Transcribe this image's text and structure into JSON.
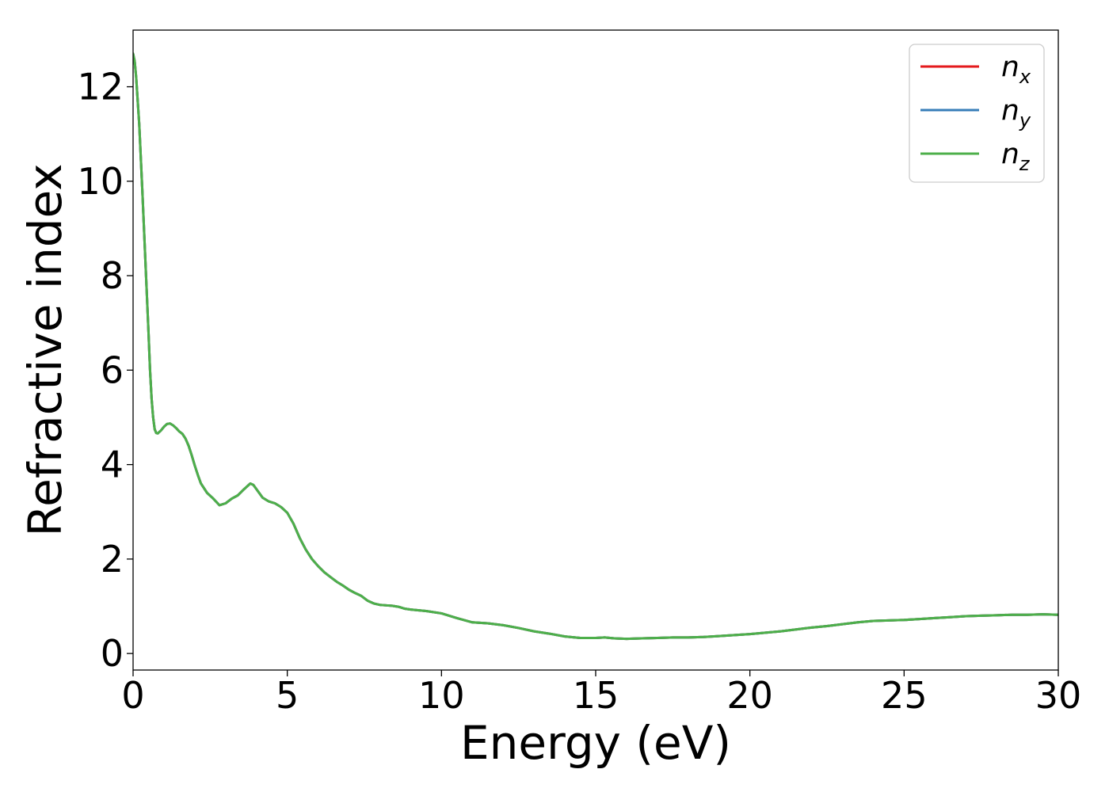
{
  "chart_data": {
    "type": "line",
    "title": "",
    "xlabel": "Energy (eV)",
    "ylabel": "Refractive index",
    "xlim": [
      0,
      30
    ],
    "ylim": [
      -0.35,
      13.2
    ],
    "xticks": [
      0,
      5,
      10,
      15,
      20,
      25,
      30
    ],
    "yticks": [
      0,
      2,
      4,
      6,
      8,
      10,
      12
    ],
    "grid": false,
    "legend_position": "top-right",
    "series": [
      {
        "name": "n",
        "subscript": "x",
        "color": "#e41a1c",
        "x": [
          0,
          0.05,
          0.1,
          0.2,
          0.3,
          0.4,
          0.5,
          0.55,
          0.6,
          0.65,
          0.7,
          0.75,
          0.8,
          0.9,
          1.0,
          1.1,
          1.2,
          1.3,
          1.4,
          1.5,
          1.6,
          1.7,
          1.8,
          1.9,
          2.0,
          2.1,
          2.2,
          2.4,
          2.6,
          2.8,
          3.0,
          3.2,
          3.4,
          3.6,
          3.8,
          3.9,
          4.0,
          4.2,
          4.4,
          4.6,
          4.8,
          5.0,
          5.2,
          5.4,
          5.6,
          5.8,
          6.0,
          6.2,
          6.4,
          6.6,
          6.8,
          7.0,
          7.2,
          7.4,
          7.6,
          7.8,
          8.0,
          8.2,
          8.4,
          8.6,
          8.8,
          9.0,
          9.5,
          10.0,
          10.5,
          11.0,
          11.5,
          12.0,
          12.5,
          13.0,
          13.5,
          14.0,
          14.5,
          15.0,
          15.3,
          15.6,
          16.0,
          16.5,
          17.0,
          17.5,
          18.0,
          18.5,
          19.0,
          19.5,
          20.0,
          20.5,
          21.0,
          21.5,
          22.0,
          22.5,
          23.0,
          23.5,
          24.0,
          24.5,
          25.0,
          25.5,
          26.0,
          26.5,
          27.0,
          27.5,
          28.0,
          28.5,
          29.0,
          29.5,
          30.0
        ],
        "values": [
          12.7,
          12.55,
          12.2,
          11.2,
          9.8,
          8.3,
          6.8,
          6.0,
          5.4,
          5.0,
          4.75,
          4.67,
          4.66,
          4.72,
          4.8,
          4.86,
          4.87,
          4.83,
          4.77,
          4.7,
          4.65,
          4.55,
          4.4,
          4.2,
          3.98,
          3.78,
          3.6,
          3.4,
          3.28,
          3.14,
          3.18,
          3.28,
          3.35,
          3.48,
          3.6,
          3.57,
          3.48,
          3.3,
          3.22,
          3.18,
          3.1,
          2.98,
          2.75,
          2.45,
          2.2,
          2.0,
          1.85,
          1.72,
          1.62,
          1.52,
          1.44,
          1.35,
          1.28,
          1.22,
          1.12,
          1.06,
          1.03,
          1.02,
          1.01,
          0.99,
          0.95,
          0.93,
          0.9,
          0.85,
          0.75,
          0.66,
          0.64,
          0.6,
          0.54,
          0.47,
          0.42,
          0.36,
          0.33,
          0.33,
          0.34,
          0.32,
          0.31,
          0.32,
          0.33,
          0.34,
          0.34,
          0.35,
          0.37,
          0.39,
          0.41,
          0.44,
          0.47,
          0.51,
          0.55,
          0.58,
          0.62,
          0.66,
          0.69,
          0.7,
          0.71,
          0.73,
          0.75,
          0.77,
          0.79,
          0.8,
          0.81,
          0.82,
          0.82,
          0.83,
          0.82
        ]
      },
      {
        "name": "n",
        "subscript": "y",
        "color": "#377eb8",
        "x": [
          0,
          0.05,
          0.1,
          0.2,
          0.3,
          0.4,
          0.5,
          0.55,
          0.6,
          0.65,
          0.7,
          0.75,
          0.8,
          0.9,
          1.0,
          1.1,
          1.2,
          1.3,
          1.4,
          1.5,
          1.6,
          1.7,
          1.8,
          1.9,
          2.0,
          2.1,
          2.2,
          2.4,
          2.6,
          2.8,
          3.0,
          3.2,
          3.4,
          3.6,
          3.8,
          3.9,
          4.0,
          4.2,
          4.4,
          4.6,
          4.8,
          5.0,
          5.2,
          5.4,
          5.6,
          5.8,
          6.0,
          6.2,
          6.4,
          6.6,
          6.8,
          7.0,
          7.2,
          7.4,
          7.6,
          7.8,
          8.0,
          8.2,
          8.4,
          8.6,
          8.8,
          9.0,
          9.5,
          10.0,
          10.5,
          11.0,
          11.5,
          12.0,
          12.5,
          13.0,
          13.5,
          14.0,
          14.5,
          15.0,
          15.3,
          15.6,
          16.0,
          16.5,
          17.0,
          17.5,
          18.0,
          18.5,
          19.0,
          19.5,
          20.0,
          20.5,
          21.0,
          21.5,
          22.0,
          22.5,
          23.0,
          23.5,
          24.0,
          24.5,
          25.0,
          25.5,
          26.0,
          26.5,
          27.0,
          27.5,
          28.0,
          28.5,
          29.0,
          29.5,
          30.0
        ],
        "values": [
          12.7,
          12.55,
          12.2,
          11.2,
          9.8,
          8.3,
          6.8,
          6.0,
          5.4,
          5.0,
          4.75,
          4.67,
          4.66,
          4.72,
          4.8,
          4.86,
          4.87,
          4.83,
          4.77,
          4.7,
          4.65,
          4.55,
          4.4,
          4.2,
          3.98,
          3.78,
          3.6,
          3.4,
          3.28,
          3.14,
          3.18,
          3.28,
          3.35,
          3.48,
          3.6,
          3.57,
          3.48,
          3.3,
          3.22,
          3.18,
          3.1,
          2.98,
          2.75,
          2.45,
          2.2,
          2.0,
          1.85,
          1.72,
          1.62,
          1.52,
          1.44,
          1.35,
          1.28,
          1.22,
          1.12,
          1.06,
          1.03,
          1.02,
          1.01,
          0.99,
          0.95,
          0.93,
          0.9,
          0.85,
          0.75,
          0.66,
          0.64,
          0.6,
          0.54,
          0.47,
          0.42,
          0.36,
          0.33,
          0.33,
          0.34,
          0.32,
          0.31,
          0.32,
          0.33,
          0.34,
          0.34,
          0.35,
          0.37,
          0.39,
          0.41,
          0.44,
          0.47,
          0.51,
          0.55,
          0.58,
          0.62,
          0.66,
          0.69,
          0.7,
          0.71,
          0.73,
          0.75,
          0.77,
          0.79,
          0.8,
          0.81,
          0.82,
          0.82,
          0.83,
          0.82
        ]
      },
      {
        "name": "n",
        "subscript": "z",
        "color": "#4daf4a",
        "x": [
          0,
          0.05,
          0.1,
          0.2,
          0.3,
          0.4,
          0.5,
          0.55,
          0.6,
          0.65,
          0.7,
          0.75,
          0.8,
          0.9,
          1.0,
          1.1,
          1.2,
          1.3,
          1.4,
          1.5,
          1.6,
          1.7,
          1.8,
          1.9,
          2.0,
          2.1,
          2.2,
          2.4,
          2.6,
          2.8,
          3.0,
          3.2,
          3.4,
          3.6,
          3.8,
          3.9,
          4.0,
          4.2,
          4.4,
          4.6,
          4.8,
          5.0,
          5.2,
          5.4,
          5.6,
          5.8,
          6.0,
          6.2,
          6.4,
          6.6,
          6.8,
          7.0,
          7.2,
          7.4,
          7.6,
          7.8,
          8.0,
          8.2,
          8.4,
          8.6,
          8.8,
          9.0,
          9.5,
          10.0,
          10.5,
          11.0,
          11.5,
          12.0,
          12.5,
          13.0,
          13.5,
          14.0,
          14.5,
          15.0,
          15.3,
          15.6,
          16.0,
          16.5,
          17.0,
          17.5,
          18.0,
          18.5,
          19.0,
          19.5,
          20.0,
          20.5,
          21.0,
          21.5,
          22.0,
          22.5,
          23.0,
          23.5,
          24.0,
          24.5,
          25.0,
          25.5,
          26.0,
          26.5,
          27.0,
          27.5,
          28.0,
          28.5,
          29.0,
          29.5,
          30.0
        ],
        "values": [
          12.7,
          12.55,
          12.2,
          11.2,
          9.8,
          8.3,
          6.8,
          6.0,
          5.4,
          5.0,
          4.75,
          4.67,
          4.66,
          4.72,
          4.8,
          4.86,
          4.87,
          4.83,
          4.77,
          4.7,
          4.65,
          4.55,
          4.4,
          4.2,
          3.98,
          3.78,
          3.6,
          3.4,
          3.28,
          3.14,
          3.18,
          3.28,
          3.35,
          3.48,
          3.6,
          3.57,
          3.48,
          3.3,
          3.22,
          3.18,
          3.1,
          2.98,
          2.75,
          2.45,
          2.2,
          2.0,
          1.85,
          1.72,
          1.62,
          1.52,
          1.44,
          1.35,
          1.28,
          1.22,
          1.12,
          1.06,
          1.03,
          1.02,
          1.01,
          0.99,
          0.95,
          0.93,
          0.9,
          0.85,
          0.75,
          0.66,
          0.64,
          0.6,
          0.54,
          0.47,
          0.42,
          0.36,
          0.33,
          0.33,
          0.34,
          0.32,
          0.31,
          0.32,
          0.33,
          0.34,
          0.34,
          0.35,
          0.37,
          0.39,
          0.41,
          0.44,
          0.47,
          0.51,
          0.55,
          0.58,
          0.62,
          0.66,
          0.69,
          0.7,
          0.71,
          0.73,
          0.75,
          0.77,
          0.79,
          0.8,
          0.81,
          0.82,
          0.82,
          0.83,
          0.82
        ]
      }
    ]
  }
}
